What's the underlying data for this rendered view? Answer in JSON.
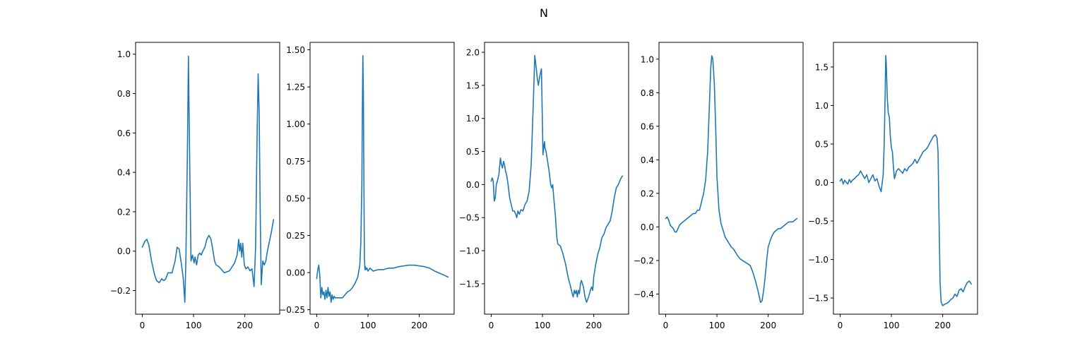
{
  "figure": {
    "suptitle": "N",
    "line_color": "#1f77b4"
  },
  "chart_data": [
    {
      "type": "line",
      "xlim": [
        -13,
        268
      ],
      "ylim": [
        -0.32,
        1.06
      ],
      "xticks": [
        0,
        100,
        200
      ],
      "xtick_labels": [
        "0",
        "100",
        "200"
      ],
      "yticks": [
        -0.2,
        0.0,
        0.2,
        0.4,
        0.6,
        0.8,
        1.0
      ],
      "ytick_labels": [
        "−0.2",
        "0.0",
        "0.2",
        "0.4",
        "0.6",
        "0.8",
        "1.0"
      ],
      "x": [
        0,
        5,
        9,
        13,
        18,
        24,
        28,
        33,
        38,
        42,
        46,
        50,
        54,
        58,
        64,
        68,
        72,
        76,
        80,
        83,
        85,
        88,
        90,
        92,
        95,
        98,
        101,
        103,
        106,
        109,
        112,
        115,
        118,
        122,
        126,
        130,
        134,
        138,
        141,
        144,
        150,
        160,
        170,
        175,
        180,
        185,
        188,
        190,
        192,
        194,
        196,
        199,
        202,
        206,
        210,
        214,
        218,
        221,
        224,
        226,
        228,
        230,
        232,
        235,
        238,
        241,
        244,
        248,
        252,
        256
      ],
      "y": [
        0.02,
        0.05,
        0.06,
        0.03,
        -0.05,
        -0.12,
        -0.15,
        -0.16,
        -0.14,
        -0.15,
        -0.14,
        -0.11,
        -0.11,
        -0.11,
        -0.05,
        0.02,
        0.01,
        -0.06,
        -0.14,
        -0.26,
        -0.05,
        0.5,
        0.99,
        0.55,
        -0.05,
        -0.02,
        -0.06,
        -0.03,
        -0.07,
        -0.02,
        -0.01,
        -0.02,
        0.0,
        0.02,
        0.06,
        0.08,
        0.06,
        0.0,
        -0.05,
        -0.07,
        -0.08,
        -0.11,
        -0.1,
        -0.08,
        -0.06,
        -0.02,
        0.06,
        0.0,
        0.04,
        -0.03,
        0.04,
        -0.07,
        -0.09,
        -0.08,
        -0.1,
        -0.09,
        -0.18,
        0.02,
        0.6,
        0.9,
        0.7,
        0.2,
        -0.17,
        -0.05,
        -0.07,
        -0.05,
        0.0,
        0.05,
        0.1,
        0.16
      ]
    },
    {
      "type": "line",
      "xlim": [
        -13,
        268
      ],
      "ylim": [
        -0.28,
        1.55
      ],
      "xticks": [
        0,
        100,
        200
      ],
      "xtick_labels": [
        "0",
        "100",
        "200"
      ],
      "yticks": [
        -0.25,
        0.0,
        0.25,
        0.5,
        0.75,
        1.0,
        1.25,
        1.5
      ],
      "ytick_labels": [
        "−0.25",
        "0.00",
        "0.25",
        "0.50",
        "0.75",
        "1.00",
        "1.25",
        "1.50"
      ],
      "x": [
        0,
        2,
        4,
        6,
        8,
        10,
        12,
        14,
        16,
        18,
        20,
        22,
        24,
        26,
        28,
        30,
        32,
        34,
        36,
        40,
        45,
        50,
        55,
        60,
        65,
        70,
        75,
        80,
        84,
        86,
        88,
        89,
        90,
        91,
        92,
        93,
        94,
        95,
        96,
        98,
        100,
        104,
        110,
        120,
        130,
        140,
        150,
        160,
        170,
        180,
        190,
        200,
        210,
        220,
        230,
        240,
        250,
        256
      ],
      "y": [
        -0.04,
        0.02,
        0.05,
        -0.02,
        -0.17,
        -0.1,
        -0.15,
        -0.13,
        -0.18,
        -0.12,
        -0.17,
        -0.1,
        -0.16,
        -0.13,
        -0.2,
        -0.15,
        -0.18,
        -0.16,
        -0.17,
        -0.17,
        -0.17,
        -0.17,
        -0.15,
        -0.13,
        -0.12,
        -0.1,
        -0.07,
        -0.03,
        0.05,
        0.2,
        0.6,
        1.1,
        1.46,
        1.2,
        0.6,
        0.1,
        0.02,
        0.04,
        0.02,
        0.03,
        0.01,
        0.03,
        0.01,
        0.02,
        0.02,
        0.03,
        0.03,
        0.04,
        0.045,
        0.05,
        0.05,
        0.045,
        0.04,
        0.03,
        0.01,
        -0.005,
        -0.02,
        -0.03
      ]
    },
    {
      "type": "line",
      "xlim": [
        -13,
        268
      ],
      "ylim": [
        -1.96,
        2.15
      ],
      "xticks": [
        0,
        100,
        200
      ],
      "xtick_labels": [
        "0",
        "100",
        "200"
      ],
      "yticks": [
        -1.5,
        -1.0,
        -0.5,
        0.0,
        0.5,
        1.0,
        1.5,
        2.0
      ],
      "ytick_labels": [
        "−1.5",
        "−1.0",
        "−0.5",
        "0.0",
        "0.5",
        "1.0",
        "1.5",
        "2.0"
      ],
      "x": [
        0,
        2,
        4,
        6,
        8,
        10,
        12,
        15,
        18,
        20,
        22,
        24,
        26,
        28,
        30,
        33,
        36,
        39,
        42,
        45,
        48,
        50,
        52,
        55,
        58,
        62,
        66,
        70,
        74,
        78,
        82,
        85,
        88,
        90,
        92,
        95,
        98,
        101,
        103,
        104,
        105,
        107,
        110,
        113,
        116,
        118,
        120,
        122,
        125,
        128,
        130,
        135,
        140,
        145,
        150,
        155,
        158,
        160,
        162,
        164,
        166,
        168,
        170,
        172,
        174,
        176,
        178,
        180,
        183,
        186,
        190,
        194,
        196,
        198,
        200,
        202,
        204,
        208,
        212,
        216,
        220,
        224,
        228,
        232,
        236,
        240,
        244,
        248,
        252,
        256
      ],
      "y": [
        0.05,
        0.1,
        0.05,
        -0.25,
        -0.2,
        0.0,
        0.05,
        0.15,
        0.4,
        0.3,
        0.25,
        0.35,
        0.3,
        0.2,
        0.15,
        0.0,
        -0.2,
        -0.3,
        -0.4,
        -0.4,
        -0.45,
        -0.5,
        -0.4,
        -0.45,
        -0.38,
        -0.4,
        -0.3,
        -0.25,
        -0.1,
        0.3,
        1.2,
        1.95,
        1.75,
        1.6,
        1.5,
        1.65,
        1.75,
        0.45,
        0.6,
        0.65,
        0.55,
        0.5,
        0.35,
        0.2,
        0.0,
        -0.05,
        0.0,
        -0.2,
        -0.45,
        -0.8,
        -0.9,
        -0.93,
        -1.05,
        -1.2,
        -1.4,
        -1.55,
        -1.65,
        -1.7,
        -1.6,
        -1.65,
        -1.6,
        -1.7,
        -1.6,
        -1.65,
        -1.5,
        -1.45,
        -1.5,
        -1.55,
        -1.7,
        -1.78,
        -1.7,
        -1.58,
        -1.55,
        -1.6,
        -1.4,
        -1.3,
        -1.2,
        -1.05,
        -0.95,
        -0.8,
        -0.75,
        -0.65,
        -0.6,
        -0.55,
        -0.4,
        -0.2,
        -0.05,
        0.0,
        0.08,
        0.13
      ]
    },
    {
      "type": "line",
      "xlim": [
        -13,
        268
      ],
      "ylim": [
        -0.52,
        1.1
      ],
      "xticks": [
        0,
        100,
        200
      ],
      "xtick_labels": [
        "0",
        "100",
        "200"
      ],
      "yticks": [
        -0.4,
        -0.2,
        0.0,
        0.2,
        0.4,
        0.6,
        0.8,
        1.0
      ],
      "ytick_labels": [
        "−0.4",
        "−0.2",
        "0.0",
        "0.2",
        "0.4",
        "0.6",
        "0.8",
        "1.0"
      ],
      "x": [
        0,
        3,
        6,
        9,
        12,
        15,
        18,
        21,
        24,
        27,
        30,
        34,
        38,
        42,
        46,
        50,
        54,
        58,
        62,
        66,
        70,
        74,
        78,
        82,
        85,
        88,
        90,
        92,
        95,
        98,
        100,
        104,
        108,
        112,
        116,
        120,
        124,
        128,
        132,
        136,
        140,
        145,
        150,
        155,
        160,
        165,
        170,
        175,
        180,
        183,
        185,
        188,
        191,
        194,
        197,
        200,
        204,
        208,
        212,
        216,
        220,
        224,
        228,
        232,
        236,
        240,
        244,
        248,
        252,
        256
      ],
      "y": [
        0.05,
        0.06,
        0.04,
        0.01,
        0.0,
        -0.01,
        -0.03,
        -0.03,
        -0.01,
        0.01,
        0.02,
        0.03,
        0.04,
        0.05,
        0.06,
        0.07,
        0.08,
        0.08,
        0.1,
        0.1,
        0.15,
        0.2,
        0.28,
        0.45,
        0.7,
        0.95,
        1.02,
        1.0,
        0.85,
        0.55,
        0.3,
        0.1,
        0.02,
        -0.02,
        -0.06,
        -0.08,
        -0.1,
        -0.12,
        -0.13,
        -0.15,
        -0.17,
        -0.19,
        -0.2,
        -0.21,
        -0.22,
        -0.23,
        -0.27,
        -0.32,
        -0.38,
        -0.42,
        -0.45,
        -0.44,
        -0.38,
        -0.3,
        -0.2,
        -0.12,
        -0.08,
        -0.05,
        -0.03,
        -0.02,
        -0.01,
        -0.01,
        0.0,
        0.01,
        0.02,
        0.03,
        0.03,
        0.03,
        0.04,
        0.05
      ]
    },
    {
      "type": "line",
      "xlim": [
        -13,
        268
      ],
      "ylim": [
        -1.71,
        1.82
      ],
      "xticks": [
        0,
        100,
        200
      ],
      "xtick_labels": [
        "0",
        "100",
        "200"
      ],
      "yticks": [
        -1.5,
        -1.0,
        -0.5,
        0.0,
        0.5,
        1.0,
        1.5
      ],
      "ytick_labels": [
        "−1.5",
        "−1.0",
        "−0.5",
        "0.0",
        "0.5",
        "1.0",
        "1.5"
      ],
      "x": [
        0,
        3,
        6,
        9,
        12,
        15,
        18,
        21,
        24,
        28,
        32,
        36,
        40,
        44,
        48,
        52,
        56,
        60,
        64,
        68,
        72,
        76,
        80,
        84,
        86,
        88,
        89,
        90,
        92,
        94,
        96,
        98,
        100,
        102,
        104,
        106,
        110,
        114,
        118,
        122,
        126,
        130,
        134,
        138,
        142,
        146,
        150,
        154,
        158,
        162,
        166,
        170,
        174,
        178,
        182,
        186,
        189,
        191,
        193,
        195,
        197,
        200,
        204,
        208,
        212,
        216,
        220,
        224,
        228,
        232,
        236,
        240,
        244,
        248,
        252,
        256
      ],
      "y": [
        0.02,
        0.05,
        -0.02,
        0.03,
        0.0,
        -0.02,
        0.04,
        0.0,
        0.03,
        0.05,
        0.08,
        0.1,
        0.15,
        0.1,
        0.05,
        0.1,
        0.0,
        0.05,
        0.1,
        0.02,
        0.05,
        -0.05,
        -0.12,
        0.1,
        0.5,
        1.2,
        1.65,
        1.55,
        1.1,
        0.9,
        0.85,
        0.6,
        0.45,
        0.4,
        0.2,
        0.05,
        0.15,
        0.18,
        0.15,
        0.12,
        0.18,
        0.15,
        0.2,
        0.22,
        0.25,
        0.3,
        0.25,
        0.3,
        0.35,
        0.4,
        0.42,
        0.45,
        0.5,
        0.55,
        0.6,
        0.62,
        0.58,
        0.4,
        -0.5,
        -1.3,
        -1.55,
        -1.6,
        -1.58,
        -1.57,
        -1.55,
        -1.52,
        -1.5,
        -1.45,
        -1.48,
        -1.4,
        -1.38,
        -1.42,
        -1.35,
        -1.3,
        -1.28,
        -1.32
      ]
    }
  ]
}
